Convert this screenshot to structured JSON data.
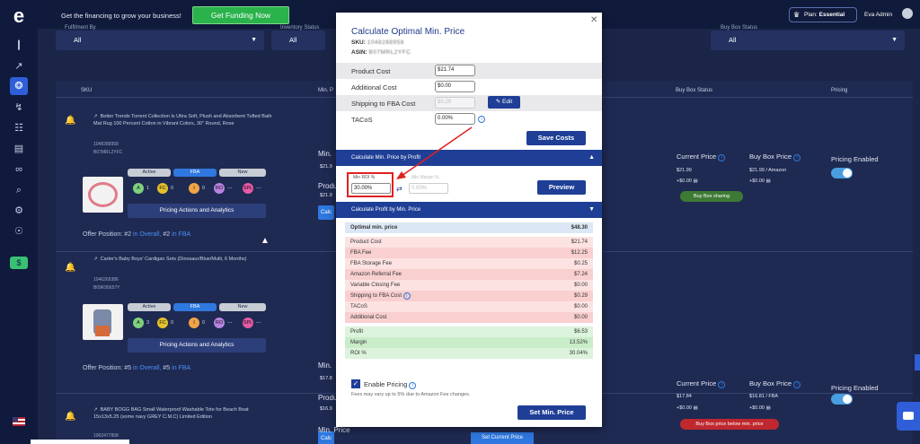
{
  "topbar": {
    "promo": "Get the financing to grow your business!",
    "fund_btn": "Get Funding Now",
    "plan_prefix": "Plan:",
    "plan_name": "Essential",
    "user": "Eva Admin"
  },
  "filters": [
    {
      "label": "Fulfilment By",
      "value": "All"
    },
    {
      "label": "Inventory Status",
      "value": "All"
    },
    {
      "label": "Buy Box Status",
      "value": "All"
    }
  ],
  "columns": {
    "sku": "SKU",
    "min_price": "Min. P",
    "buybox": "Buy Box Status",
    "pricing": "Pricing"
  },
  "products": [
    {
      "title": "Better Trends Torrent Collection Is Ultra Soft, Plush and Absorbent Tufted Bath Mat Rug 100 Percent Cotton in Vibrant Colors, 30\" Round, Rose",
      "id1": "1048288958",
      "id2": "B07MRL2YFC",
      "pills": [
        "Active",
        "FBA",
        "New"
      ],
      "circles": [
        {
          "t": "A",
          "v": "1"
        },
        {
          "t": "FC",
          "v": "0"
        },
        {
          "t": "I",
          "v": "0"
        },
        {
          "t": "RO",
          "v": "---"
        },
        {
          "t": "SPL",
          "v": "---"
        }
      ],
      "actions": "Pricing Actions and Analytics",
      "offer_prefix": "Offer Position:",
      "offer_pos1": "#2",
      "offer_in1": "in Overall,",
      "offer_pos2": "#2",
      "offer_in2": "in FBA",
      "minp": "Min.",
      "minp_val": "$21.9",
      "prod": "Produ",
      "prod_val": "$21.9",
      "current_label": "Current Price",
      "current_price": "$21.99",
      "current_ship": "+$0.00",
      "bb_label": "Buy Box Price",
      "bb_price": "$21.99 / Amazon",
      "bb_ship": "+$0.00",
      "bb_status": "Buy Box sharing",
      "pricing_label": "Pricing Enabled"
    },
    {
      "title": "Carter's Baby Boys' Cardigan Sets (Dinosaur/Blue/Multi, 6 Months)",
      "id1": "1046269386",
      "id2": "B09K95657Y",
      "pills": [
        "Active",
        "FBA",
        "New"
      ],
      "circles": [
        {
          "t": "A",
          "v": "3"
        },
        {
          "t": "FC",
          "v": "0"
        },
        {
          "t": "I",
          "v": "0"
        },
        {
          "t": "RO",
          "v": "---"
        },
        {
          "t": "SPL",
          "v": "---"
        }
      ],
      "actions": "Pricing Actions and Analytics",
      "offer_prefix": "Offer Position:",
      "offer_pos1": "#5",
      "offer_in1": "in Overall,",
      "offer_pos2": "#5",
      "offer_in2": "in FBA",
      "minp": "Min.",
      "minp_val": "$17.8",
      "prod": "Produ",
      "prod_val": "$16.9",
      "current_label": "Current Price",
      "current_price": "$17.84",
      "current_ship": "+$0.00",
      "bb_label": "Buy Box Price",
      "bb_price": "$16.81 / FBA",
      "bb_ship": "+$0.00",
      "bb_status": "Buy Box price below min. price",
      "pricing_label": "Pricing Enabled"
    },
    {
      "title": "BABY BOGG BAG Small Waterproof Washable Tote for Beach Boat 15x13x5.25 (some navy GREY C.M.C) Limited Edition",
      "id1": "1062477808",
      "minp": "Min. Price",
      "set_current": "Set Current Price"
    }
  ],
  "modal": {
    "title": "Calculate Optimal Min. Price",
    "sku_label": "SKU:",
    "sku": "1048288958",
    "asin_label": "ASIN:",
    "asin": "B07MRL2YFC",
    "costs": [
      {
        "label": "Product Cost",
        "value": "$21.74"
      },
      {
        "label": "Additional Cost",
        "value": "$0.00"
      },
      {
        "label": "Shipping to FBA Cost",
        "value": "$0.29"
      },
      {
        "label": "TACoS",
        "value": "0.00%"
      }
    ],
    "edit": "Edit",
    "save": "Save Costs",
    "sec1": "Calculate Min. Price by Profit",
    "min_roi_label": "Min ROI %",
    "min_roi": "30.00%",
    "min_margin_label": "Min Margin %",
    "min_margin": "0.00%",
    "preview": "Preview",
    "sec2": "Calculate Profit by Min. Price",
    "table": [
      {
        "k": "Optimal min. price",
        "v": "$48.30",
        "c": "optimal"
      },
      {
        "k": "",
        "v": "",
        "c": "plain"
      },
      {
        "k": "Product Cost",
        "v": "$21.74",
        "c": "pink"
      },
      {
        "k": "FBA Fee",
        "v": "$12.25",
        "c": "pink"
      },
      {
        "k": "FBA Storage Fee",
        "v": "$0.25",
        "c": "pink"
      },
      {
        "k": "Amazon Referral Fee",
        "v": "$7.24",
        "c": "pink"
      },
      {
        "k": "Variable Closing Fee",
        "v": "$0.00",
        "c": "pink"
      },
      {
        "k": "Shipping to FBA Cost",
        "v": "$0.29",
        "c": "pink"
      },
      {
        "k": "TACoS",
        "v": "$0.00",
        "c": "pink"
      },
      {
        "k": "Additional Cost",
        "v": "$0.00",
        "c": "pink"
      },
      {
        "k": "",
        "v": "",
        "c": "plain"
      },
      {
        "k": "Profit",
        "v": "$6.53",
        "c": "green"
      },
      {
        "k": "Margin",
        "v": "13.52%",
        "c": "green"
      },
      {
        "k": "ROI %",
        "v": "30.04%",
        "c": "green"
      }
    ],
    "enable": "Enable Pricing",
    "note": "Fees may vary up to 5% due to Amazon Fee changes.",
    "set_min": "Set Min. Price"
  },
  "colors": {
    "accent": "#1f3f96",
    "green": "#2ab24b",
    "red": "#e02020"
  }
}
